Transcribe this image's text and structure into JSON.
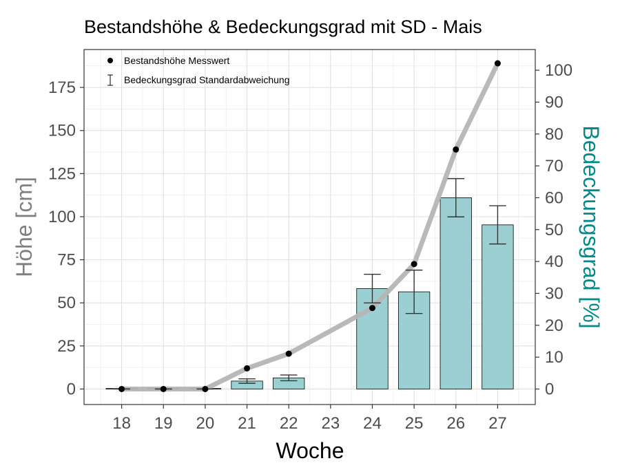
{
  "chart_data": {
    "type": "bar+line",
    "title": "Bestandshöhe & Bedeckungsgrad mit SD - Mais",
    "xlabel": "Woche",
    "ylabel": "Höhe [cm]",
    "y2label": "Bedeckungsgrad [%]",
    "categories": [
      "18",
      "19",
      "20",
      "21",
      "22",
      "23",
      "24",
      "25",
      "26",
      "27"
    ],
    "ylim": [
      -9,
      197
    ],
    "y2lim": [
      -4.86,
      106.49
    ],
    "yticks": [
      0,
      25,
      50,
      75,
      100,
      125,
      150,
      175
    ],
    "y2ticks": [
      0,
      10,
      20,
      30,
      40,
      50,
      60,
      70,
      80,
      90,
      100
    ],
    "height_series": {
      "name": "Bestandshöhe Messwert",
      "values": [
        0,
        0,
        0,
        12,
        20.5,
        null,
        47,
        72.5,
        139,
        189
      ]
    },
    "coverage_series": {
      "name": "Bedeckungsgrad Standardabweichung",
      "values": [
        0,
        0,
        0,
        2.5,
        3.5,
        null,
        31.5,
        30.5,
        60,
        51.5
      ],
      "sd": [
        0,
        0,
        0,
        0.7,
        0.9,
        null,
        4.5,
        6.8,
        6.0,
        6.0
      ]
    },
    "colors": {
      "bar_fill": "#9ccfd1",
      "line": "#b5b5b5",
      "point": "#000000",
      "y2_label": "#008b8b",
      "y_label": "#7f7f7f",
      "grid": "#dedede"
    },
    "grid": true,
    "legend_position": "top-left"
  }
}
